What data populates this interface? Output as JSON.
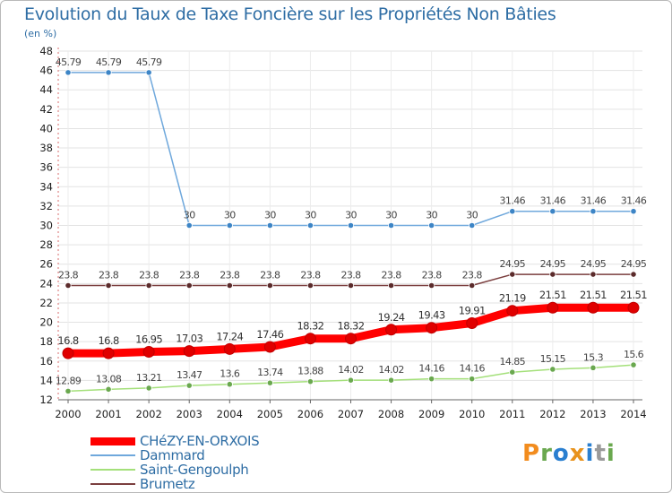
{
  "title": "Evolution du Taux de Taxe Foncière sur les Propriétés Non Bâties",
  "unit": "(en %)",
  "logo": {
    "letters": [
      "P",
      "r",
      "o",
      "x",
      "i",
      "t",
      "i"
    ],
    "colors": [
      "#f28c1e",
      "#6aa84f",
      "#2a7fd0",
      "#e8931d",
      "#2a7fd0",
      "#9a9a9a",
      "#6aa84f"
    ]
  },
  "chart_data": {
    "type": "line",
    "title": "Evolution du Taux de Taxe Foncière sur les Propriétés Non Bâties",
    "ylabel": "(en %)",
    "xlabel": "",
    "ylim": [
      12,
      48
    ],
    "yticks": [
      12,
      14,
      16,
      18,
      20,
      22,
      24,
      26,
      28,
      30,
      32,
      34,
      36,
      38,
      40,
      42,
      44,
      46,
      48
    ],
    "categories": [
      "2000",
      "2001",
      "2002",
      "2003",
      "2004",
      "2005",
      "2006",
      "2007",
      "2008",
      "2009",
      "2010",
      "2011",
      "2012",
      "2013",
      "2014"
    ],
    "series": [
      {
        "name": "CHéZY-EN-ORXOIS",
        "color": "#ff0000",
        "width": 9,
        "marker": "#e00000",
        "main": true,
        "values": [
          16.8,
          16.8,
          16.95,
          17.03,
          17.24,
          17.46,
          18.32,
          18.32,
          19.24,
          19.43,
          19.91,
          21.19,
          21.51,
          21.51,
          21.51
        ],
        "labels": [
          "16.8",
          "16.8",
          "16.95",
          "17.03",
          "17.24",
          "17.46",
          "18.32",
          "18.32",
          "19.24",
          "19.43",
          "19.91",
          "21.19",
          "21.51",
          "21.51",
          "21.51"
        ]
      },
      {
        "name": "Dammard",
        "color": "#6fa8dc",
        "width": 1.5,
        "marker": "#3d85c6",
        "values": [
          45.79,
          45.79,
          45.79,
          30,
          30,
          30,
          30,
          30,
          30,
          30,
          30,
          31.46,
          31.46,
          31.46,
          31.46
        ],
        "labels": [
          "45.79",
          "45.79",
          "45.79",
          "30",
          "30",
          "30",
          "30",
          "30",
          "30",
          "30",
          "30",
          "31.46",
          "31.46",
          "31.46",
          "31.46"
        ]
      },
      {
        "name": "Saint-Gengoulph",
        "color": "#a4e07a",
        "width": 1.5,
        "marker": "#6aa84f",
        "values": [
          12.89,
          13.08,
          13.21,
          13.47,
          13.6,
          13.74,
          13.88,
          14.02,
          14.02,
          14.16,
          14.16,
          14.85,
          15.15,
          15.3,
          15.6
        ],
        "labels": [
          "12.89",
          "13.08",
          "13.21",
          "13.47",
          "13.6",
          "13.74",
          "13.88",
          "14.02",
          "14.02",
          "14.16",
          "14.16",
          "14.85",
          "15.15",
          "15.3",
          "15.6"
        ]
      },
      {
        "name": "Brumetz",
        "color": "#7b3f3f",
        "width": 1.5,
        "marker": "#5b2b2b",
        "values": [
          23.8,
          23.8,
          23.8,
          23.8,
          23.8,
          23.8,
          23.8,
          23.8,
          23.8,
          23.8,
          23.8,
          24.95,
          24.95,
          24.95,
          24.95
        ],
        "labels": [
          "23.8",
          "23.8",
          "23.8",
          "23.8",
          "23.8",
          "23.8",
          "23.8",
          "23.8",
          "23.8",
          "23.8",
          "23.8",
          "24.95",
          "24.95",
          "24.95",
          "24.95"
        ]
      }
    ],
    "legend": [
      "CHéZY-EN-ORXOIS",
      "Dammard",
      "Saint-Gengoulph",
      "Brumetz"
    ],
    "legend_position": "bottom-left"
  }
}
